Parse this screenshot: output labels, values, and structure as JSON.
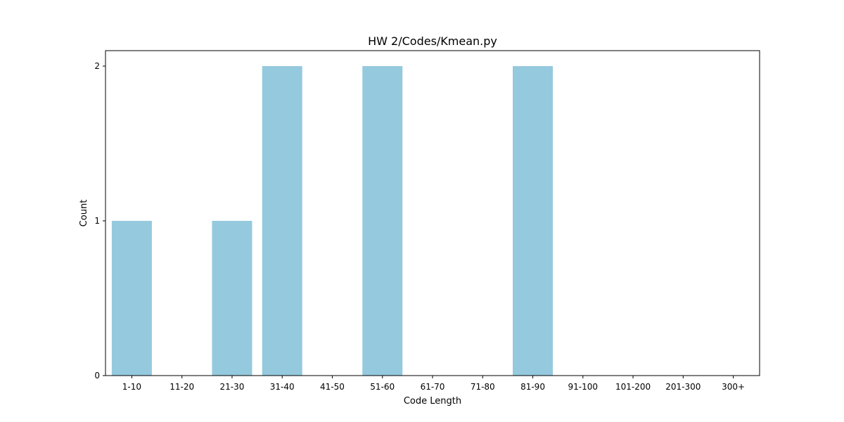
{
  "chart_data": {
    "type": "bar",
    "title": "HW 2/Codes/Kmean.py",
    "xlabel": "Code Length",
    "ylabel": "Count",
    "categories": [
      "1-10",
      "11-20",
      "21-30",
      "31-40",
      "41-50",
      "51-60",
      "61-70",
      "71-80",
      "81-90",
      "91-100",
      "101-200",
      "201-300",
      "300+"
    ],
    "values": [
      1,
      0,
      1,
      2,
      0,
      2,
      0,
      0,
      2,
      0,
      0,
      0,
      0
    ],
    "ylim": [
      0,
      2.1
    ],
    "yticks": [
      0,
      1,
      2
    ],
    "grid": false,
    "legend": "none",
    "bar_color": "#95c9de"
  }
}
